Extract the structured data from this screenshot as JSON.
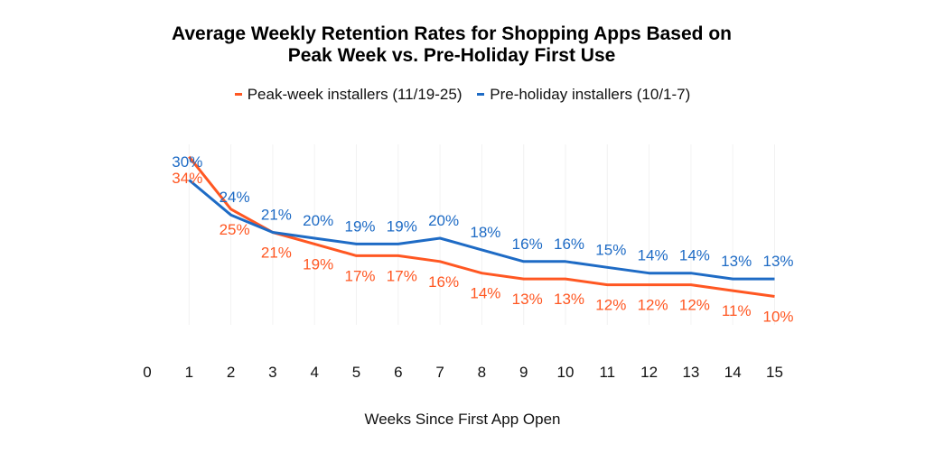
{
  "chart_data": {
    "type": "line",
    "title_lines": [
      "Average Weekly Retention Rates for Shopping Apps Based on",
      "Peak Week vs. Pre-Holiday First Use"
    ],
    "xlabel": "Weeks Since First App Open",
    "ylabel": "",
    "x_ticks": [
      "0",
      "1",
      "2",
      "3",
      "4",
      "5",
      "6",
      "7",
      "8",
      "9",
      "10",
      "11",
      "12",
      "13",
      "14",
      "15"
    ],
    "x": [
      1,
      2,
      3,
      4,
      5,
      6,
      7,
      8,
      9,
      10,
      11,
      12,
      13,
      14,
      15
    ],
    "xlim": [
      0,
      15
    ],
    "ylim": [
      0,
      35
    ],
    "grid": "vertical-faint",
    "legend_position": "top-center",
    "series": [
      {
        "name": "Peak-week installers (11/19-25)",
        "color": "#FF5722",
        "values": [
          34,
          25,
          21,
          19,
          17,
          17,
          16,
          14,
          13,
          13,
          12,
          12,
          12,
          11,
          10
        ],
        "labels": [
          "34%",
          "25%",
          "21%",
          "19%",
          "17%",
          "17%",
          "16%",
          "14%",
          "13%",
          "13%",
          "12%",
          "12%",
          "12%",
          "11%",
          "10%"
        ],
        "label_position": "below"
      },
      {
        "name": "Pre-holiday installers (10/1-7)",
        "color": "#1E6BC5",
        "values": [
          30,
          24,
          21,
          20,
          19,
          19,
          20,
          18,
          16,
          16,
          15,
          14,
          14,
          13,
          13
        ],
        "labels": [
          "30%",
          "24%",
          "21%",
          "20%",
          "19%",
          "19%",
          "20%",
          "18%",
          "16%",
          "16%",
          "15%",
          "14%",
          "14%",
          "13%",
          "13%"
        ],
        "label_position": "above"
      }
    ]
  }
}
